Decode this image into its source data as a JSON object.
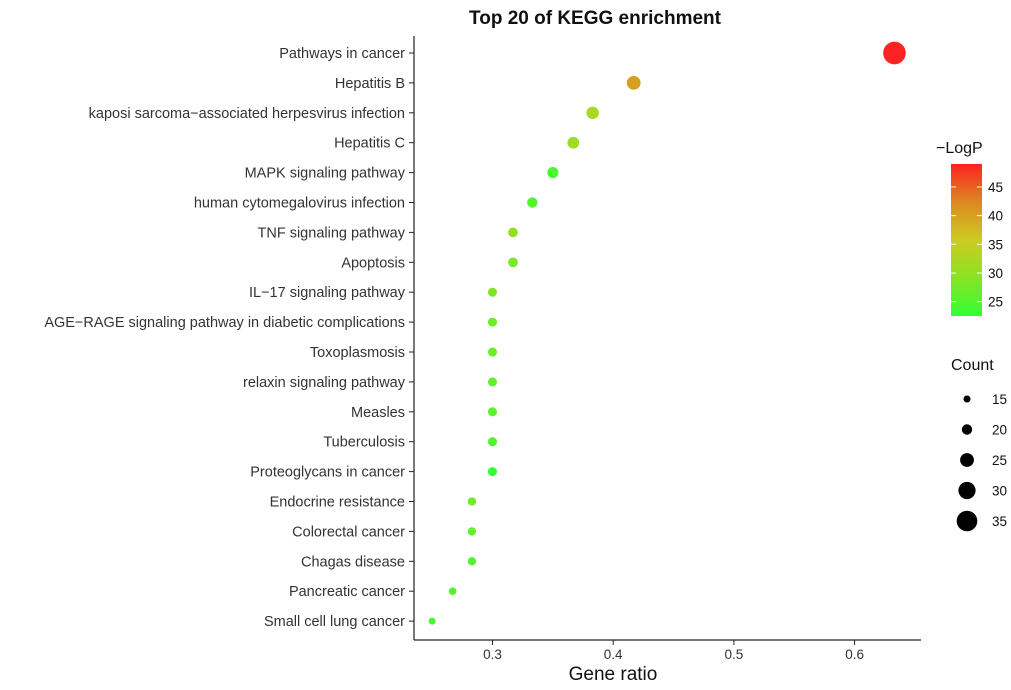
{
  "chart_data": {
    "type": "scatter",
    "title": "Top 20 of KEGG enrichment",
    "xlabel": "Gene ratio",
    "ylabel": "",
    "xlim": [
      0.235,
      0.655
    ],
    "xticks": [
      "0.3",
      "0.4",
      "0.5",
      "0.6"
    ],
    "xtick_values": [
      0.3,
      0.4,
      0.5,
      0.6
    ],
    "grid": false,
    "color_legend": {
      "title": "−LogP",
      "ticks": [
        25,
        30,
        35,
        40,
        45
      ],
      "range": [
        22.5,
        49
      ],
      "gradient": [
        "#33ff33",
        "#99dd22",
        "#cccc22",
        "#dd8822",
        "#ff2222"
      ]
    },
    "size_legend": {
      "title": "Count",
      "values": [
        15,
        20,
        25,
        30,
        35
      ]
    },
    "points": [
      {
        "term": "Pathways in cancer",
        "gene_ratio": 0.633,
        "count": 38,
        "logp": 49
      },
      {
        "term": "Hepatitis B",
        "gene_ratio": 0.417,
        "count": 25,
        "logp": 40
      },
      {
        "term": "kaposi sarcoma−associated herpesvirus infection",
        "gene_ratio": 0.383,
        "count": 23,
        "logp": 32
      },
      {
        "term": "Hepatitis C",
        "gene_ratio": 0.367,
        "count": 22,
        "logp": 31
      },
      {
        "term": "MAPK signaling pathway",
        "gene_ratio": 0.35,
        "count": 21,
        "logp": 24
      },
      {
        "term": "human cytomegalovirus infection",
        "gene_ratio": 0.333,
        "count": 20,
        "logp": 25
      },
      {
        "term": "TNF signaling pathway",
        "gene_ratio": 0.317,
        "count": 19,
        "logp": 30
      },
      {
        "term": "Apoptosis",
        "gene_ratio": 0.317,
        "count": 19,
        "logp": 28
      },
      {
        "term": "IL−17 signaling pathway",
        "gene_ratio": 0.3,
        "count": 18,
        "logp": 28
      },
      {
        "term": "AGE−RAGE signaling pathway in diabetic complications",
        "gene_ratio": 0.3,
        "count": 18,
        "logp": 27
      },
      {
        "term": "Toxoplasmosis",
        "gene_ratio": 0.3,
        "count": 18,
        "logp": 27
      },
      {
        "term": "relaxin signaling pathway",
        "gene_ratio": 0.3,
        "count": 18,
        "logp": 26
      },
      {
        "term": "Measles",
        "gene_ratio": 0.3,
        "count": 18,
        "logp": 26
      },
      {
        "term": "Tuberculosis",
        "gene_ratio": 0.3,
        "count": 18,
        "logp": 25
      },
      {
        "term": "Proteoglycans in cancer",
        "gene_ratio": 0.3,
        "count": 18,
        "logp": 22.5
      },
      {
        "term": "Endocrine resistance",
        "gene_ratio": 0.283,
        "count": 17,
        "logp": 27
      },
      {
        "term": "Colorectal cancer",
        "gene_ratio": 0.283,
        "count": 17,
        "logp": 26
      },
      {
        "term": "Chagas disease",
        "gene_ratio": 0.283,
        "count": 17,
        "logp": 25
      },
      {
        "term": "Pancreatic cancer",
        "gene_ratio": 0.267,
        "count": 16,
        "logp": 25
      },
      {
        "term": "Small cell lung cancer",
        "gene_ratio": 0.25,
        "count": 15,
        "logp": 24
      }
    ]
  }
}
